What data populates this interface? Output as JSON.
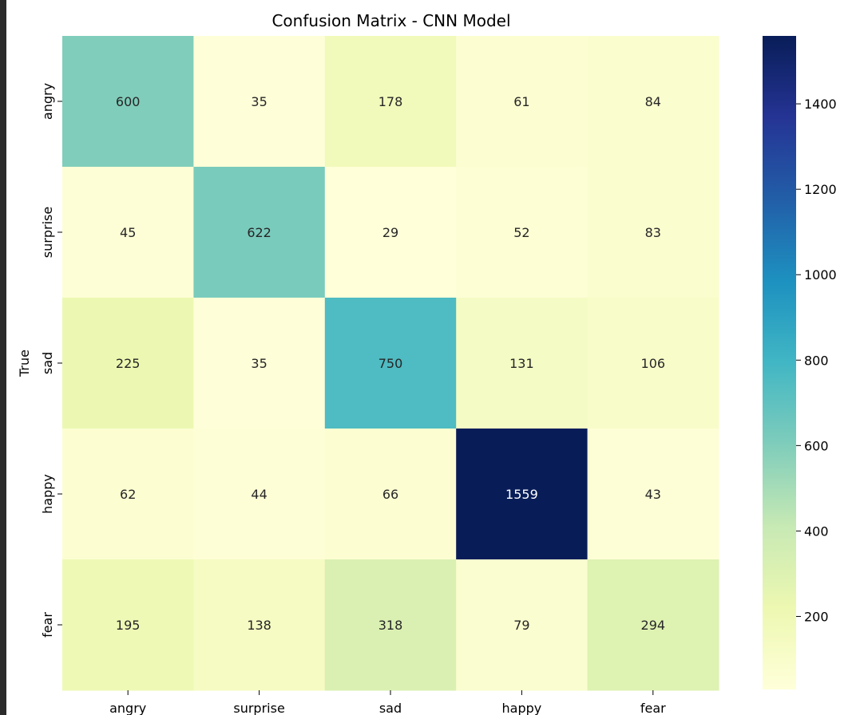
{
  "chart_data": {
    "type": "heatmap",
    "title": "Confusion Matrix - CNN Model",
    "ylabel": "True",
    "xlabel": "",
    "x_categories": [
      "angry",
      "surprise",
      "sad",
      "happy",
      "fear"
    ],
    "y_categories": [
      "angry",
      "surprise",
      "sad",
      "happy",
      "fear"
    ],
    "values": [
      [
        600,
        35,
        178,
        61,
        84
      ],
      [
        45,
        622,
        29,
        52,
        83
      ],
      [
        225,
        35,
        750,
        131,
        106
      ],
      [
        62,
        44,
        66,
        1559,
        43
      ],
      [
        195,
        138,
        318,
        79,
        294
      ]
    ],
    "colormap": "YlGnBu",
    "colorbar": {
      "range": [
        29,
        1559
      ],
      "ticks": [
        200,
        400,
        600,
        800,
        1000,
        1200,
        1400
      ]
    },
    "grid": false,
    "annotated": true
  }
}
